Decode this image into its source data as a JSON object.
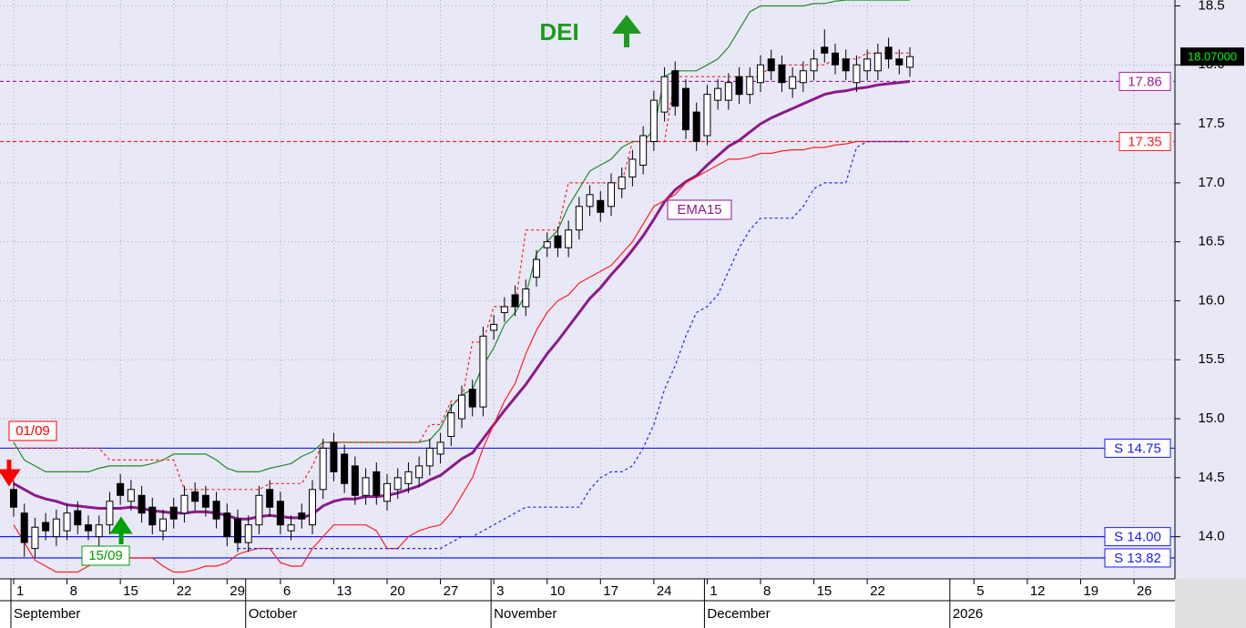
{
  "chart_data": {
    "type": "candlestick",
    "title": "DEI",
    "categories": [
      "1",
      null,
      null,
      null,
      null,
      "8",
      null,
      null,
      null,
      null,
      "15",
      null,
      null,
      null,
      null,
      "22",
      null,
      null,
      null,
      null,
      "29",
      null,
      null,
      null,
      null,
      "6",
      null,
      null,
      null,
      null,
      "13",
      null,
      null,
      null,
      null,
      "20",
      null,
      null,
      null,
      null,
      "27",
      null,
      null,
      null,
      null,
      "3",
      null,
      null,
      null,
      null,
      "10",
      null,
      null,
      null,
      null,
      "17",
      null,
      null,
      null,
      null,
      "24",
      null,
      null,
      null,
      null,
      "1",
      null,
      null,
      null,
      null,
      "8",
      null,
      null,
      null,
      null,
      "15",
      null,
      null,
      null,
      null,
      "22",
      null,
      null,
      null,
      null,
      null,
      null,
      null,
      null,
      null,
      "5",
      null,
      null,
      null,
      null,
      "12",
      null,
      null,
      null,
      null,
      "19",
      null,
      null,
      null,
      null,
      "26",
      null,
      null
    ],
    "months": [
      "September",
      null,
      null,
      null,
      null,
      null,
      null,
      null,
      null,
      null,
      null,
      null,
      null,
      null,
      null,
      null,
      null,
      null,
      null,
      null,
      null,
      null,
      "October",
      null,
      null,
      null,
      null,
      null,
      null,
      null,
      null,
      null,
      null,
      null,
      null,
      null,
      null,
      null,
      null,
      null,
      null,
      null,
      null,
      null,
      null,
      "November",
      null,
      null,
      null,
      null,
      null,
      null,
      null,
      null,
      null,
      null,
      null,
      null,
      null,
      null,
      null,
      null,
      null,
      null,
      null,
      "December",
      null,
      null,
      null,
      null,
      null,
      null,
      null,
      null,
      null,
      null,
      null,
      null,
      null,
      null,
      null,
      null,
      null,
      null,
      null,
      null,
      null,
      null,
      "2026",
      null,
      null,
      null,
      null,
      null,
      null,
      null,
      null,
      null,
      null,
      null,
      null,
      null,
      null,
      null,
      null,
      null,
      null,
      null
    ],
    "open": [
      14.4,
      14.2,
      13.9,
      14.12,
      14.0,
      14.05,
      14.22,
      14.1,
      14.0,
      14.1,
      14.45,
      14.3,
      14.35,
      14.25,
      14.05,
      14.25,
      14.2,
      14.38,
      14.35,
      14.3,
      14.2,
      14.15,
      13.95,
      14.1,
      14.4,
      14.3,
      14.05,
      14.2,
      14.1,
      14.4,
      14.8,
      14.7,
      14.6,
      14.35,
      14.55,
      14.3,
      14.4,
      14.45,
      14.5,
      14.6,
      14.7,
      14.85,
      15.0,
      15.25,
      15.1,
      15.75,
      15.9,
      16.05,
      15.95,
      16.2,
      16.45,
      16.55,
      16.45,
      16.6,
      16.8,
      16.85,
      16.8,
      16.95,
      17.05,
      17.15,
      17.35,
      17.6,
      17.95,
      17.8,
      17.6,
      17.4,
      17.7,
      17.7,
      17.9,
      17.75,
      17.85,
      18.05,
      18.0,
      17.8,
      17.85,
      17.95,
      18.15,
      18.1,
      18.05,
      17.85,
      17.95,
      17.95,
      18.15,
      18.05,
      17.98,
      null,
      null,
      null,
      null,
      null,
      null,
      null,
      null,
      null,
      null,
      null,
      null,
      null,
      null,
      null,
      null,
      null,
      null,
      null,
      null,
      null,
      null,
      null
    ],
    "high": [
      14.48,
      14.28,
      14.16,
      14.2,
      14.23,
      14.28,
      14.3,
      14.18,
      14.18,
      14.38,
      14.53,
      14.48,
      14.43,
      14.33,
      14.23,
      14.33,
      14.43,
      14.46,
      14.43,
      14.38,
      14.28,
      14.23,
      14.18,
      14.43,
      14.48,
      14.38,
      14.18,
      14.28,
      14.48,
      14.83,
      14.88,
      14.78,
      14.68,
      14.58,
      14.63,
      14.53,
      14.58,
      14.63,
      14.68,
      14.83,
      14.88,
      15.13,
      15.28,
      15.33,
      15.78,
      15.88,
      16.03,
      16.13,
      16.18,
      16.43,
      16.58,
      16.63,
      16.68,
      16.88,
      16.98,
      16.93,
      17.08,
      17.13,
      17.28,
      17.48,
      17.78,
      17.98,
      18.03,
      17.88,
      17.68,
      17.83,
      17.88,
      17.93,
      17.98,
      17.98,
      18.08,
      18.13,
      18.08,
      17.98,
      18.03,
      18.13,
      18.3,
      18.18,
      18.13,
      18.08,
      18.13,
      18.18,
      18.23,
      18.13,
      18.15,
      null,
      null,
      null,
      null,
      null,
      null,
      null,
      null,
      null,
      null,
      null,
      null,
      null,
      null,
      null,
      null,
      null,
      null,
      null,
      null,
      null,
      null,
      null
    ],
    "low": [
      14.17,
      13.83,
      13.82,
      13.97,
      13.92,
      13.97,
      14.02,
      13.97,
      13.92,
      14.02,
      14.27,
      14.22,
      14.12,
      14.02,
      13.97,
      14.07,
      14.12,
      14.22,
      14.17,
      14.07,
      13.92,
      13.87,
      13.87,
      14.02,
      14.17,
      14.02,
      13.97,
      14.07,
      14.02,
      14.32,
      14.47,
      14.37,
      14.27,
      14.27,
      14.27,
      14.22,
      14.32,
      14.37,
      14.42,
      14.52,
      14.62,
      14.77,
      14.92,
      15.02,
      15.02,
      15.67,
      15.82,
      15.87,
      15.87,
      16.12,
      16.37,
      16.37,
      16.37,
      16.52,
      16.72,
      16.67,
      16.72,
      16.87,
      16.97,
      17.07,
      17.27,
      17.52,
      17.57,
      17.37,
      17.27,
      17.32,
      17.62,
      17.62,
      17.67,
      17.67,
      17.77,
      17.87,
      17.77,
      17.72,
      17.77,
      17.87,
      18.02,
      17.92,
      17.87,
      17.77,
      17.87,
      17.87,
      17.97,
      17.92,
      17.9,
      null,
      null,
      null,
      null,
      null,
      null,
      null,
      null,
      null,
      null,
      null,
      null,
      null,
      null,
      null,
      null,
      null,
      null,
      null,
      null,
      null,
      null,
      null
    ],
    "close": [
      14.25,
      13.95,
      14.08,
      14.05,
      14.15,
      14.2,
      14.1,
      14.05,
      14.1,
      14.3,
      14.35,
      14.4,
      14.2,
      14.1,
      14.15,
      14.15,
      14.35,
      14.3,
      14.25,
      14.15,
      14.0,
      13.95,
      14.1,
      14.35,
      14.25,
      14.1,
      14.1,
      14.15,
      14.4,
      14.75,
      14.55,
      14.45,
      14.35,
      14.5,
      14.35,
      14.45,
      14.5,
      14.55,
      14.6,
      14.75,
      14.8,
      15.05,
      15.2,
      15.1,
      15.7,
      15.8,
      15.95,
      15.95,
      16.1,
      16.35,
      16.5,
      16.45,
      16.6,
      16.8,
      16.9,
      16.75,
      17.0,
      17.05,
      17.2,
      17.4,
      17.7,
      17.9,
      17.65,
      17.45,
      17.35,
      17.75,
      17.8,
      17.85,
      17.75,
      17.9,
      18.0,
      17.95,
      17.85,
      17.9,
      17.95,
      18.05,
      18.1,
      18.0,
      17.95,
      18.0,
      18.05,
      18.1,
      18.05,
      18.0,
      18.07,
      null,
      null,
      null,
      null,
      null,
      null,
      null,
      null,
      null,
      null,
      null,
      null,
      null,
      null,
      null,
      null,
      null,
      null,
      null,
      null,
      null,
      null,
      null
    ],
    "up_color": "#ffffff",
    "down_color": "#000000",
    "overlays": [
      {
        "name": "EMA15",
        "color": "#8b1a8b",
        "width": 3,
        "style": "solid",
        "values": [
          14.45,
          14.4,
          14.35,
          14.32,
          14.3,
          14.27,
          14.26,
          14.25,
          14.24,
          14.24,
          14.24,
          14.25,
          14.24,
          14.22,
          14.21,
          14.2,
          14.2,
          14.21,
          14.21,
          14.2,
          14.18,
          14.15,
          14.15,
          14.17,
          14.18,
          14.17,
          14.16,
          14.16,
          14.19,
          14.26,
          14.3,
          14.32,
          14.32,
          14.34,
          14.34,
          14.35,
          14.37,
          14.4,
          14.43,
          14.48,
          14.52,
          14.59,
          14.66,
          14.71,
          14.83,
          14.95,
          15.07,
          15.18,
          15.29,
          15.42,
          15.55,
          15.66,
          15.78,
          15.9,
          16.02,
          16.11,
          16.22,
          16.32,
          16.43,
          16.55,
          16.69,
          16.84,
          16.94,
          17.01,
          17.06,
          17.15,
          17.23,
          17.31,
          17.36,
          17.43,
          17.5,
          17.55,
          17.59,
          17.63,
          17.67,
          17.71,
          17.75,
          17.77,
          17.78,
          17.8,
          17.81,
          17.83,
          17.84,
          17.85,
          17.86,
          null,
          null,
          null,
          null,
          null,
          null,
          null,
          null,
          null,
          null,
          null,
          null,
          null,
          null,
          null,
          null,
          null,
          null,
          null,
          null,
          null,
          null,
          null
        ]
      },
      {
        "color": "#228b22",
        "width": 1.2,
        "style": "solid",
        "values": [
          14.8,
          14.65,
          14.6,
          14.55,
          14.55,
          14.55,
          14.55,
          14.55,
          14.58,
          14.6,
          14.6,
          14.6,
          14.6,
          14.62,
          14.65,
          14.7,
          14.7,
          14.7,
          14.7,
          14.65,
          14.58,
          14.55,
          14.55,
          14.55,
          14.58,
          14.6,
          14.62,
          14.68,
          14.72,
          14.8,
          14.8,
          14.8,
          14.8,
          14.8,
          14.8,
          14.8,
          14.8,
          14.8,
          14.8,
          14.82,
          14.92,
          15.1,
          15.2,
          15.25,
          15.45,
          15.6,
          15.8,
          15.9,
          16.05,
          16.4,
          16.5,
          16.6,
          16.8,
          16.95,
          17.1,
          17.15,
          17.2,
          17.3,
          17.35,
          17.35,
          17.45,
          17.9,
          17.95,
          17.95,
          17.95,
          18.0,
          18.05,
          18.15,
          18.3,
          18.45,
          18.5,
          18.5,
          18.5,
          18.5,
          18.5,
          18.52,
          18.52,
          18.54,
          18.55,
          18.55,
          18.55,
          18.55,
          18.55,
          18.55,
          18.55,
          null,
          null,
          null,
          null,
          null,
          null,
          null,
          null,
          null,
          null,
          null,
          null,
          null,
          null,
          null,
          null,
          null,
          null,
          null,
          null,
          null,
          null,
          null
        ]
      },
      {
        "color": "#ff2020",
        "width": 1.2,
        "style": "solid",
        "values": [
          14.1,
          13.95,
          13.8,
          13.75,
          13.7,
          13.7,
          13.7,
          13.75,
          13.8,
          13.82,
          13.82,
          13.82,
          13.82,
          13.82,
          13.75,
          13.7,
          13.7,
          13.72,
          13.75,
          13.75,
          13.78,
          13.85,
          13.88,
          13.9,
          13.9,
          13.78,
          13.75,
          13.75,
          13.9,
          14.0,
          14.1,
          14.1,
          14.1,
          14.1,
          14.05,
          13.9,
          13.9,
          14.0,
          14.05,
          14.08,
          14.1,
          14.2,
          14.35,
          14.5,
          14.75,
          14.95,
          15.15,
          15.3,
          15.55,
          15.75,
          15.9,
          16.0,
          16.05,
          16.15,
          16.2,
          16.25,
          16.3,
          16.4,
          16.5,
          16.65,
          16.8,
          16.85,
          16.9,
          17.0,
          17.05,
          17.1,
          17.15,
          17.2,
          17.2,
          17.22,
          17.25,
          17.25,
          17.27,
          17.28,
          17.28,
          17.3,
          17.3,
          17.32,
          17.33,
          17.35,
          17.35,
          17.35,
          17.35,
          17.35,
          17.35,
          null,
          null,
          null,
          null,
          null,
          null,
          null,
          null,
          null,
          null,
          null,
          null,
          null,
          null,
          null,
          null,
          null,
          null,
          null,
          null,
          null,
          null,
          null
        ]
      },
      {
        "color": "#2020ff",
        "width": 1.2,
        "style": "dotted",
        "values": [
          null,
          null,
          null,
          null,
          null,
          null,
          null,
          null,
          null,
          null,
          null,
          null,
          null,
          null,
          null,
          null,
          null,
          null,
          null,
          null,
          null,
          13.9,
          13.9,
          13.9,
          13.9,
          13.9,
          13.9,
          13.9,
          13.9,
          13.9,
          13.9,
          13.9,
          13.9,
          13.9,
          13.9,
          13.9,
          13.9,
          13.9,
          13.9,
          13.9,
          13.9,
          13.95,
          14.0,
          14.0,
          14.05,
          14.1,
          14.15,
          14.2,
          14.25,
          14.25,
          14.25,
          14.25,
          14.25,
          14.25,
          14.4,
          14.5,
          14.55,
          14.55,
          14.6,
          14.75,
          14.95,
          15.25,
          15.45,
          15.7,
          15.9,
          15.95,
          16.05,
          16.25,
          16.45,
          16.6,
          16.7,
          16.7,
          16.7,
          16.7,
          16.8,
          16.95,
          17.0,
          17.0,
          17.0,
          17.3,
          17.35,
          17.35,
          17.35,
          17.35,
          17.35,
          null,
          null,
          null,
          null,
          null,
          null,
          null,
          null,
          null,
          null,
          null,
          null,
          null,
          null,
          null,
          null,
          null,
          null,
          null,
          null,
          null,
          null,
          null
        ]
      },
      {
        "color": "#ff2020",
        "width": 1.2,
        "style": "dotted",
        "values": [
          14.75,
          14.75,
          14.75,
          14.75,
          14.75,
          14.75,
          14.75,
          14.75,
          14.75,
          14.65,
          14.65,
          14.65,
          14.65,
          14.65,
          14.65,
          14.65,
          14.4,
          14.4,
          14.4,
          14.4,
          14.4,
          14.4,
          14.4,
          14.4,
          14.45,
          14.45,
          14.45,
          14.45,
          14.6,
          14.8,
          14.8,
          14.8,
          14.8,
          14.8,
          14.8,
          14.8,
          14.8,
          14.8,
          14.8,
          14.95,
          14.95,
          15.15,
          15.15,
          15.65,
          15.65,
          15.95,
          15.95,
          15.95,
          16.6,
          16.6,
          16.6,
          16.6,
          17.0,
          17.0,
          17.0,
          17.0,
          17.0,
          17.0,
          17.35,
          17.35,
          17.35,
          17.35,
          17.9,
          17.9,
          17.9,
          17.9,
          17.9,
          17.9,
          17.9,
          17.9,
          17.9,
          18.0,
          18.0,
          18.0,
          18.0,
          18.0,
          18.0,
          18.05,
          18.05,
          18.05,
          18.1,
          18.1,
          18.1,
          18.1,
          18.1,
          null,
          null,
          null,
          null,
          null,
          null,
          null,
          null,
          null,
          null,
          null,
          null,
          null,
          null,
          null,
          null,
          null,
          null,
          null,
          null,
          null,
          null,
          null
        ]
      }
    ],
    "levels": [
      {
        "value": 17.86,
        "color": "#a020a0",
        "style": "dashed"
      },
      {
        "value": 17.35,
        "color": "#ff2020",
        "style": "dashed"
      },
      {
        "value": 14.75,
        "label": "S 14.75",
        "color": "#1a1aff",
        "style": "solid"
      },
      {
        "value": 14.0,
        "label": "S 14.00",
        "color": "#1a1aff",
        "style": "solid"
      },
      {
        "value": 13.82,
        "label": "S 13.82",
        "color": "#1a1aff",
        "style": "solid"
      }
    ],
    "last_price": {
      "value": 18.07,
      "label": "18.07000"
    },
    "annotations": [
      {
        "text": "01/09",
        "color": "#ff0000"
      },
      {
        "text": "15/09",
        "color": "#00a000"
      }
    ],
    "ylim": [
      13.65,
      18.55
    ],
    "yticks": [
      {
        "value": 14,
        "label": "14.0"
      },
      {
        "value": 14.5,
        "label": "14.5"
      },
      {
        "value": 15,
        "label": "15.0"
      },
      {
        "value": 15.5,
        "label": "15.5"
      },
      {
        "value": 16,
        "label": "16.0"
      },
      {
        "value": 16.5,
        "label": "16.5"
      },
      {
        "value": 17,
        "label": "17.0"
      },
      {
        "value": 17.5,
        "label": "17.5"
      },
      {
        "value": 18,
        "label": "18.0"
      },
      {
        "value": 18.5,
        "label": "18.5"
      }
    ],
    "grid": true
  }
}
